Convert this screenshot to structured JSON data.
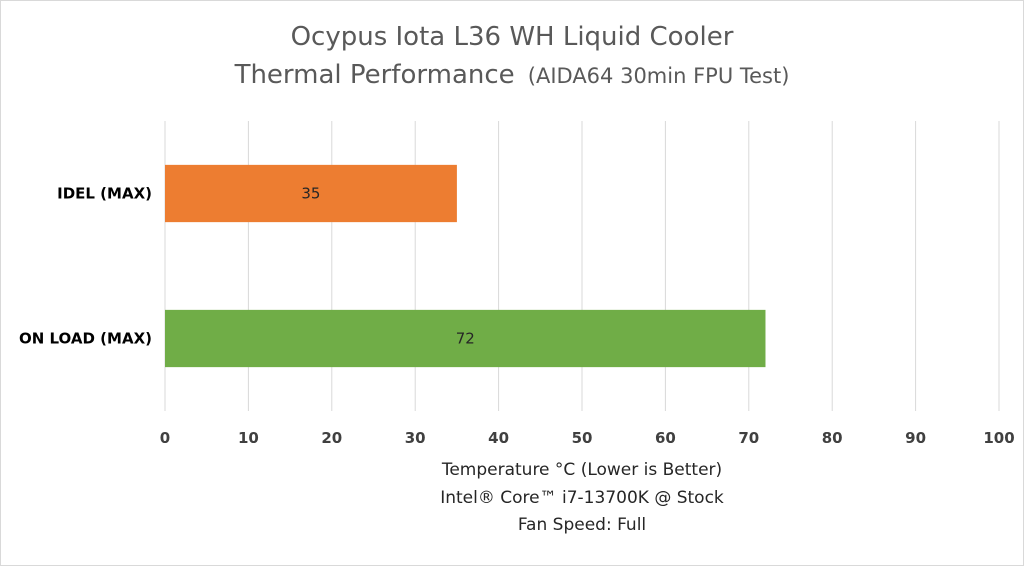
{
  "chart_data": {
    "type": "bar",
    "orientation": "horizontal",
    "title": "Ocypus Iota L36 WH Liquid Cooler",
    "subtitle_main": "Thermal Performance",
    "subtitle_note": "(AIDA64 30min FPU Test)",
    "categories": [
      "IDEL (MAX)",
      "ON LOAD (MAX)"
    ],
    "values": [
      35,
      72
    ],
    "bar_colors": [
      "#ED7D31",
      "#70AD47"
    ],
    "data_labels": [
      "35",
      "72"
    ],
    "xlim": [
      0,
      100
    ],
    "xticks": [
      "0",
      "10",
      "20",
      "30",
      "40",
      "50",
      "60",
      "70",
      "80",
      "90",
      "100"
    ],
    "xlabel_lines": [
      "Temperature °C (Lower is Better)",
      "Intel® Core™ i7-13700K @ Stock",
      "Fan Speed: Full"
    ],
    "grid": true,
    "legend": "none"
  }
}
